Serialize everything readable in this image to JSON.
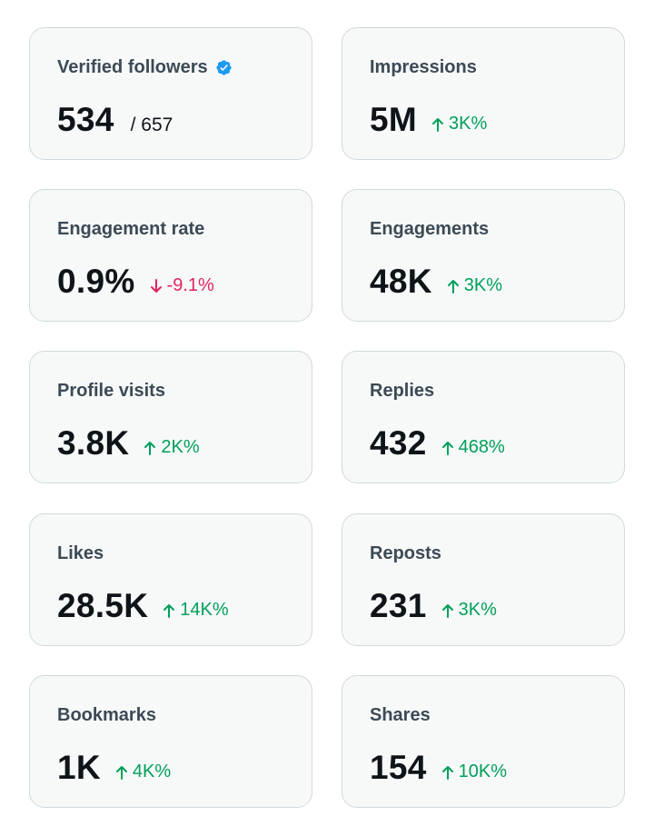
{
  "cards": [
    {
      "label": "Verified followers",
      "value": "534",
      "sub": "/ 657",
      "verified": true
    },
    {
      "label": "Impressions",
      "value": "5M",
      "delta": "3K%",
      "direction": "up"
    },
    {
      "label": "Engagement rate",
      "value": "0.9%",
      "delta": "-9.1%",
      "direction": "down"
    },
    {
      "label": "Engagements",
      "value": "48K",
      "delta": "3K%",
      "direction": "up"
    },
    {
      "label": "Profile visits",
      "value": "3.8K",
      "delta": "2K%",
      "direction": "up"
    },
    {
      "label": "Replies",
      "value": "432",
      "delta": "468%",
      "direction": "up"
    },
    {
      "label": "Likes",
      "value": "28.5K",
      "delta": "14K%",
      "direction": "up"
    },
    {
      "label": "Reposts",
      "value": "231",
      "delta": "3K%",
      "direction": "up"
    },
    {
      "label": "Bookmarks",
      "value": "1K",
      "delta": "4K%",
      "direction": "up"
    },
    {
      "label": "Shares",
      "value": "154",
      "delta": "10K%",
      "direction": "up"
    }
  ],
  "colors": {
    "up": "#00a05a",
    "down": "#e0245e",
    "verified": "#1d9bf0"
  }
}
